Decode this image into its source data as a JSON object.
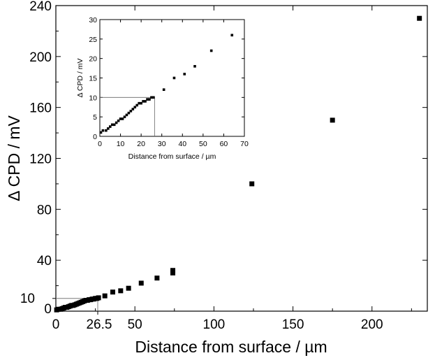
{
  "chart_data": [
    {
      "type": "scatter",
      "title": "",
      "xlabel": "Distance from surface / µm",
      "ylabel": "Δ CPD / mV",
      "xlim": [
        0,
        235
      ],
      "ylim": [
        0,
        240
      ],
      "xticks": [
        0,
        50,
        100,
        150,
        200
      ],
      "yticks": [
        40,
        80,
        120,
        160,
        200,
        240
      ],
      "extra_ticks": {
        "x": [
          "26.5"
        ],
        "y": [
          "0",
          "10"
        ]
      },
      "guide": {
        "x": 26.5,
        "y": 10
      },
      "x": [
        0.5,
        1.5,
        3,
        4,
        5,
        6,
        7,
        8,
        9,
        10,
        11,
        12,
        13,
        14,
        15,
        16,
        17,
        18,
        19,
        20,
        21,
        22,
        23,
        24,
        25,
        26,
        27,
        31,
        36,
        41,
        46,
        54,
        64,
        74,
        74,
        124,
        175,
        230
      ],
      "y": [
        1,
        1.5,
        1.5,
        2,
        2.5,
        3,
        3,
        3.5,
        4,
        4.5,
        4.5,
        5,
        5.5,
        6,
        6.5,
        7,
        7.5,
        8,
        8.5,
        8.5,
        9,
        9,
        9.5,
        9.5,
        10,
        10,
        10.5,
        12,
        15,
        16,
        18,
        22,
        26,
        30,
        32,
        100,
        150,
        230
      ]
    },
    {
      "type": "scatter",
      "title": "",
      "xlabel": "Distance from surface / µm",
      "ylabel": "Δ CPD / mV",
      "xlim": [
        0,
        70
      ],
      "ylim": [
        0,
        30
      ],
      "xticks": [
        0,
        10,
        20,
        30,
        40,
        50,
        60,
        70
      ],
      "yticks": [
        0,
        5,
        10,
        15,
        20,
        25,
        30
      ],
      "guide": {
        "x": 26.5,
        "y": 10
      },
      "x": [
        0.5,
        1.5,
        3,
        4,
        5,
        6,
        7,
        8,
        9,
        10,
        11,
        12,
        13,
        14,
        15,
        16,
        17,
        18,
        19,
        20,
        21,
        22,
        23,
        24,
        25,
        26,
        31,
        36,
        41,
        46,
        54,
        64
      ],
      "y": [
        1,
        1.5,
        1.5,
        2,
        2.5,
        3,
        3,
        3.5,
        4,
        4.5,
        4.5,
        5,
        5.5,
        6,
        6.5,
        7,
        7.5,
        8,
        8.5,
        8.5,
        9,
        9,
        9.5,
        9.5,
        10,
        10,
        12,
        15,
        16,
        18,
        22,
        26
      ]
    }
  ]
}
